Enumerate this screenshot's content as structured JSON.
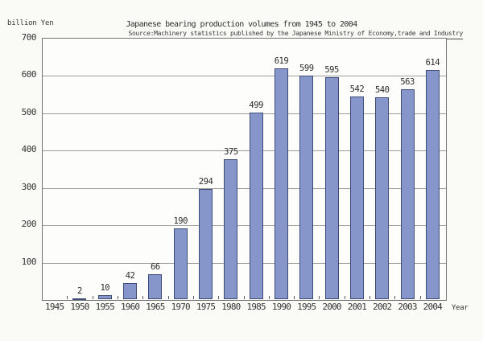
{
  "page": {
    "background": "#fafaf7"
  },
  "chart_data": {
    "type": "bar",
    "title": "Japanese bearing production volumes from 1945 to 2004",
    "subtitle": "Source:Machinery statistics published by the Japanese Ministry of Economy,trade and Industry",
    "unit_label": "billion Yen",
    "x_axis_suffix_label": "Year",
    "categories": [
      "1945",
      "1950",
      "1955",
      "1960",
      "1965",
      "1970",
      "1975",
      "1980",
      "1985",
      "1990",
      "1995",
      "2000",
      "2001",
      "2002",
      "2003",
      "2004"
    ],
    "values": [
      null,
      2,
      10,
      42,
      66,
      190,
      294,
      375,
      499,
      619,
      599,
      595,
      542,
      540,
      563,
      614
    ],
    "y_ticks": [
      100,
      200,
      300,
      400,
      500,
      600,
      700
    ],
    "ylim": [
      0,
      700
    ],
    "grid": true,
    "legend_position": "none",
    "show_value_labels": true,
    "bar_color": "#8796ca",
    "bar_border_color": "#3e4a78",
    "grid_color": "#9b9b9b",
    "frame_color": "#737373",
    "text_color": "#333333"
  }
}
